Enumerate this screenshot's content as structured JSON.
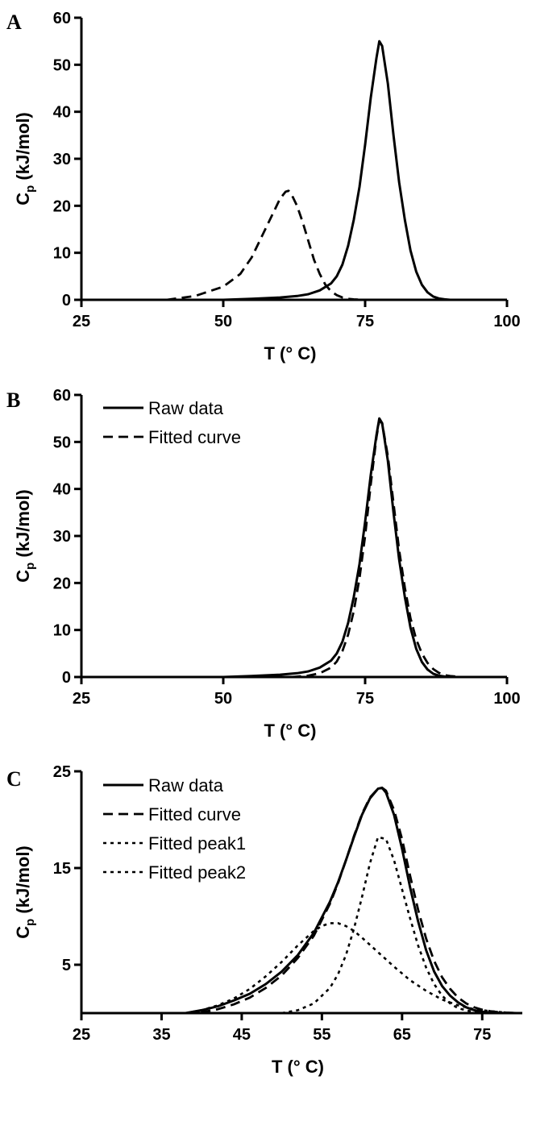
{
  "chart_data": [
    {
      "panel": "A",
      "type": "line",
      "xlabel": "T (° C)",
      "ylabel": "Cp (kJ/mol)",
      "ylabel_main": "C",
      "ylabel_sub": "p",
      "ylabel_rest": " (kJ/mol)",
      "xlim": [
        25,
        100
      ],
      "ylim": [
        0,
        60
      ],
      "xticks": [
        25,
        50,
        75,
        100
      ],
      "yticks": [
        0,
        10,
        20,
        30,
        40,
        50,
        60
      ],
      "grid": false,
      "legend": [],
      "series": [
        {
          "style": "solid",
          "x": [
            50,
            55,
            60,
            63,
            65,
            67,
            69,
            70,
            71,
            72,
            73,
            74,
            75,
            76,
            77,
            77.5,
            78,
            79,
            80,
            81,
            82,
            83,
            84,
            85,
            86,
            87,
            88,
            89,
            90
          ],
          "y": [
            0,
            0.2,
            0.5,
            0.8,
            1.2,
            2.0,
            3.5,
            5.0,
            7.5,
            11.5,
            17,
            24,
            33,
            43,
            51.5,
            55,
            54,
            46,
            35,
            25,
            17,
            10.5,
            6,
            3.2,
            1.6,
            0.7,
            0.3,
            0.1,
            0
          ]
        },
        {
          "style": "dashed",
          "x": [
            40,
            45,
            50,
            53,
            55,
            57,
            58,
            59,
            60,
            61,
            61.5,
            62,
            63,
            64,
            65,
            66,
            67,
            68,
            69,
            70,
            71,
            72,
            73,
            75
          ],
          "y": [
            0,
            0.8,
            2.8,
            5.5,
            9,
            14,
            16.5,
            19,
            21.5,
            23,
            23.2,
            22.5,
            20,
            16.5,
            12.5,
            8.5,
            5.5,
            3.2,
            1.8,
            1.0,
            0.5,
            0.2,
            0.1,
            0
          ]
        }
      ]
    },
    {
      "panel": "B",
      "type": "line",
      "xlabel": "T (° C)",
      "ylabel": "Cp (kJ/mol)",
      "ylabel_main": "C",
      "ylabel_sub": "p",
      "ylabel_rest": " (kJ/mol)",
      "xlim": [
        25,
        100
      ],
      "ylim": [
        0,
        60
      ],
      "xticks": [
        25,
        50,
        75,
        100
      ],
      "yticks": [
        0,
        10,
        20,
        30,
        40,
        50,
        60
      ],
      "grid": false,
      "legend": [
        "Raw data",
        "Fitted curve"
      ],
      "series": [
        {
          "name": "Raw data",
          "style": "solid",
          "x": [
            50,
            55,
            60,
            63,
            65,
            67,
            69,
            70,
            71,
            72,
            73,
            74,
            75,
            76,
            77,
            77.5,
            78,
            79,
            80,
            81,
            82,
            83,
            84,
            85,
            86,
            87,
            88,
            89,
            90
          ],
          "y": [
            0,
            0.2,
            0.5,
            0.8,
            1.2,
            2.0,
            3.5,
            5.0,
            7.5,
            11.5,
            17,
            24,
            33,
            43,
            51.5,
            55,
            54,
            46,
            35,
            25,
            17,
            10.5,
            6,
            3.2,
            1.6,
            0.7,
            0.3,
            0.1,
            0
          ]
        },
        {
          "name": "Fitted curve",
          "style": "dashed",
          "x": [
            62,
            65,
            67,
            69,
            70,
            71,
            72,
            73,
            74,
            75,
            76,
            77,
            77.5,
            78,
            79,
            80,
            81,
            82,
            83,
            84,
            85,
            86,
            87,
            88,
            89,
            90,
            92
          ],
          "y": [
            0,
            0.3,
            0.8,
            2.0,
            3.3,
            5.5,
            9,
            14,
            21,
            30,
            41,
            51,
            54.5,
            54,
            47,
            37,
            27,
            19,
            12.5,
            8,
            5,
            3,
            1.7,
            0.9,
            0.4,
            0.2,
            0
          ]
        }
      ]
    },
    {
      "panel": "C",
      "type": "line",
      "xlabel": "T (° C)",
      "ylabel": "Cp (kJ/mol)",
      "ylabel_main": "C",
      "ylabel_sub": "p",
      "ylabel_rest": " (kJ/mol)",
      "xlim": [
        25,
        80
      ],
      "ylim": [
        0,
        25
      ],
      "xticks": [
        25,
        35,
        45,
        55,
        65,
        75
      ],
      "yticks": [
        5,
        15,
        25
      ],
      "grid": false,
      "legend": [
        "Raw data",
        "Fitted curve",
        "Fitted peak1",
        "Fitted peak2"
      ],
      "series": [
        {
          "name": "Raw data",
          "style": "solid",
          "x": [
            38,
            40,
            42,
            44,
            46,
            48,
            50,
            52,
            54,
            56,
            57,
            58,
            59,
            60,
            61,
            62,
            62.5,
            63,
            64,
            65,
            66,
            67,
            68,
            69,
            70,
            71,
            72,
            73,
            74,
            75,
            76,
            78
          ],
          "y": [
            0,
            0.3,
            0.7,
            1.3,
            2.0,
            3.0,
            4.3,
            6.0,
            8.3,
            11.5,
            13.5,
            15.8,
            18.2,
            20.5,
            22.2,
            23.2,
            23.3,
            22.8,
            20.5,
            17,
            13,
            9.5,
            6.5,
            4.3,
            2.8,
            1.8,
            1.1,
            0.6,
            0.3,
            0.15,
            0.05,
            0
          ]
        },
        {
          "name": "Fitted curve",
          "style": "dashed",
          "x": [
            38,
            40,
            42,
            44,
            46,
            48,
            50,
            52,
            54,
            56,
            57,
            58,
            59,
            60,
            61,
            62,
            62.5,
            63,
            64,
            65,
            66,
            67,
            68,
            69,
            70,
            71,
            72,
            73,
            74,
            75,
            76,
            77,
            78,
            80
          ],
          "y": [
            0,
            0.1,
            0.4,
            0.9,
            1.6,
            2.6,
            3.9,
            5.7,
            8.0,
            11.3,
            13.4,
            15.8,
            18.3,
            20.6,
            22.3,
            23.2,
            23.3,
            23.0,
            21.0,
            18.0,
            14.2,
            10.7,
            7.7,
            5.4,
            3.7,
            2.5,
            1.6,
            1.0,
            0.6,
            0.35,
            0.2,
            0.1,
            0.05,
            0
          ]
        },
        {
          "name": "Fitted peak1",
          "style": "dotted",
          "x": [
            38,
            40,
            42,
            44,
            46,
            48,
            50,
            52,
            54,
            55,
            56,
            57,
            58,
            59,
            60,
            62,
            64,
            66,
            68,
            70,
            72,
            74,
            76,
            78,
            80
          ],
          "y": [
            0,
            0.3,
            0.8,
            1.5,
            2.5,
            3.8,
            5.3,
            7.0,
            8.5,
            9.0,
            9.3,
            9.3,
            9.0,
            8.5,
            7.8,
            6.3,
            4.8,
            3.4,
            2.3,
            1.4,
            0.8,
            0.4,
            0.2,
            0.05,
            0
          ]
        },
        {
          "name": "Fitted peak2",
          "style": "dotted",
          "x": [
            50,
            52,
            54,
            56,
            57,
            58,
            59,
            60,
            61,
            62,
            63,
            64,
            65,
            66,
            67,
            68,
            69,
            70,
            71,
            72,
            74,
            76
          ],
          "y": [
            0,
            0.3,
            1.0,
            2.6,
            4.0,
            6.0,
            8.7,
            12.0,
            15.5,
            18.2,
            18.0,
            15.8,
            12.8,
            9.8,
            7.0,
            4.7,
            3.0,
            1.8,
            1.0,
            0.5,
            0.1,
            0
          ]
        }
      ]
    }
  ]
}
